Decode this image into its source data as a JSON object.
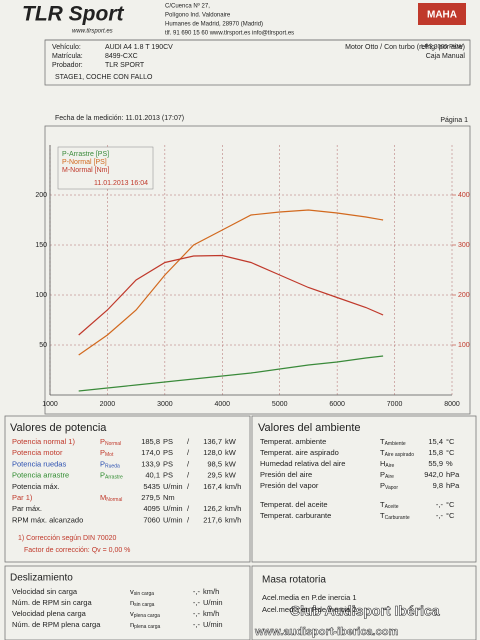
{
  "header": {
    "brand": "TLR Sport",
    "brand_sub": "www.tlrsport.es",
    "address": [
      "C/Cuenca Nº 27,",
      "Polígono Ind. Valdonaire",
      "Humanes de Madrid, 28970 (Madrid)",
      "tlf. 91 690 15 60   www.tlrsport.es   info@tlrsport.es"
    ],
    "maker": "MAHA",
    "model": "LPS 3000 PKW"
  },
  "vehicle": {
    "rows": [
      [
        "Vehículo:",
        "AUDI A4 1.8 T 190CV"
      ],
      [
        "Matrícula:",
        "8499-CXC"
      ],
      [
        "Probador:",
        "TLR SPORT"
      ]
    ],
    "engine": "Motor Otto / Con turbo (refrig. por aire)",
    "gearbox": "Caja Manual",
    "note": "STAGE1, COCHE CON FALLO"
  },
  "measurement": {
    "date": "Fecha de la medición: 11.01.2013 (17:07)",
    "page": "Página 1"
  },
  "chart_data": {
    "type": "line",
    "legend_date": "11.01.2013 16:04",
    "legend": "upper left",
    "grid": true,
    "x": [
      1500,
      2000,
      2500,
      3000,
      3500,
      4000,
      4500,
      5000,
      5500,
      6000,
      6500,
      6800
    ],
    "xlim": [
      1000,
      8000
    ],
    "xticks": [
      1000,
      2000,
      3000,
      4000,
      5000,
      6000,
      7000,
      8000
    ],
    "ylim": [
      0,
      250
    ],
    "yticks": [
      50,
      100,
      150,
      200
    ],
    "y2lim": [
      0,
      500
    ],
    "y2ticks": [
      100,
      200,
      300,
      400
    ],
    "series": [
      {
        "name": "P-Arrastre [PS]",
        "color": "#3a8a3a",
        "values": [
          4,
          7,
          10,
          13,
          16,
          19,
          22,
          26,
          30,
          33,
          37,
          39
        ]
      },
      {
        "name": "P-Normal [PS]",
        "color": "#d2691e",
        "values": [
          40,
          60,
          85,
          120,
          150,
          165,
          180,
          183,
          185,
          182,
          178,
          175
        ]
      },
      {
        "name": "M-Normal [Nm]",
        "color": "#c0392b",
        "axis": "y2",
        "values": [
          120,
          170,
          230,
          265,
          278,
          279,
          265,
          240,
          215,
          195,
          175,
          160
        ]
      }
    ]
  },
  "potencia": {
    "title": "Valores de potencia",
    "rows": [
      {
        "label": "Potencia normal 1)",
        "color": "#c0392b",
        "sym": "P",
        "sub": "Normal",
        "values": [
          "185,8",
          "PS",
          "/",
          "136,7",
          "kW"
        ]
      },
      {
        "label": "Potencia motor",
        "color": "#c0392b",
        "sym": "P",
        "sub": "Mot",
        "values": [
          "174,0",
          "PS",
          "/",
          "128,0",
          "kW"
        ]
      },
      {
        "label": "Potencia ruedas",
        "color": "#2a4fb0",
        "sym": "P",
        "sub": "Rueda",
        "values": [
          "133,9",
          "PS",
          "/",
          "98,5",
          "kW"
        ]
      },
      {
        "label": "Potencia arrastre",
        "color": "#2e8b2e",
        "sym": "P",
        "sub": "Arrastre",
        "values": [
          "40,1",
          "PS",
          "/",
          "29,5",
          "kW"
        ]
      },
      {
        "label": "Potencia máx.",
        "color": "#222",
        "values": [
          "5435",
          "U/min",
          "/",
          "167,4",
          "km/h"
        ]
      },
      {
        "label": "Par 1)",
        "color": "#c0392b",
        "sym": "M",
        "sub": "Normal",
        "values": [
          "279,5",
          "Nm"
        ]
      },
      {
        "label": "Par máx.",
        "color": "#222",
        "values": [
          "4095",
          "U/min",
          "/",
          "126,2",
          "km/h"
        ]
      },
      {
        "label": "RPM máx. alcanzado",
        "color": "#222",
        "values": [
          "7060",
          "U/min",
          "/",
          "217,6",
          "km/h"
        ]
      }
    ],
    "notes": [
      "1) Corrección según DIN 70020",
      "Factor de corrección:  Qv =  0,00 %"
    ]
  },
  "ambiente": {
    "title": "Valores del ambiente",
    "rows": [
      {
        "label": "Temperat. ambiente",
        "sym": "T",
        "sub": "Ambiente",
        "values": [
          "15,4",
          "°C"
        ]
      },
      {
        "label": "Temperat. aire aspirado",
        "sym": "T",
        "sub": "Aire aspirado",
        "values": [
          "15,8",
          "°C"
        ]
      },
      {
        "label": "Humedad relativa del aire",
        "sym": "H",
        "sub": "Aire",
        "values": [
          "55,9",
          "%"
        ]
      },
      {
        "label": "Presión del aire",
        "sym": "P",
        "sub": "Aire",
        "values": [
          "942,0",
          "hPa"
        ]
      },
      {
        "label": "Presión del vapor",
        "sym": "P",
        "sub": "Vapor",
        "values": [
          "9,8",
          "hPa"
        ]
      },
      {
        "label": "Temperat. del aceite",
        "sym": "T",
        "sub": "Aceite",
        "values": [
          "-,-",
          "°C"
        ]
      },
      {
        "label": "Temperat. carburante",
        "sym": "T",
        "sub": "Carburante",
        "values": [
          "-,-",
          "°C"
        ]
      }
    ]
  },
  "deslizamiento": {
    "title": "Deslizamiento",
    "rows": [
      {
        "label": "Velocidad sin carga",
        "sym": "v",
        "sub": "sin carga",
        "values": [
          "-,-",
          "km/h"
        ]
      },
      {
        "label": "Núm. de RPM sin carga",
        "sym": "n",
        "sub": "sin carga",
        "values": [
          "-,-",
          "U/min"
        ]
      },
      {
        "label": "Velocidad plena carga",
        "sym": "v",
        "sub": "plena carga",
        "values": [
          "-,-",
          "km/h"
        ]
      },
      {
        "label": "Núm. de RPM plena carga",
        "sym": "n",
        "sub": "plena carga",
        "values": [
          "-,-",
          "U/min"
        ]
      }
    ]
  },
  "masa": {
    "title": "Masa rotatoria",
    "rows": [
      {
        "label": "Acel.media en P.de inercia 1"
      },
      {
        "label": "Acel.media en P.de inercia 2"
      }
    ]
  },
  "watermark": {
    "club": "Club Audisport Ibérica",
    "url": "www.audisport-iberica.com"
  }
}
